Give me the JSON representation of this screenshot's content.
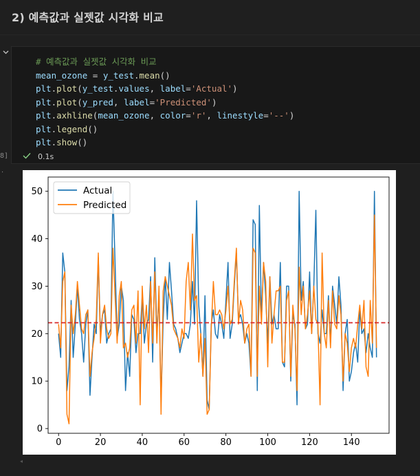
{
  "markdown": {
    "title": "2) 예측값과 실젯값 시각화 비교"
  },
  "cell": {
    "code_lines": [
      [
        [
          "# 예측값과 실젯값 시각화 비교",
          "t-com"
        ]
      ],
      [
        [
          "mean_ozone",
          "t-var"
        ],
        [
          " = ",
          "t-op"
        ],
        [
          "y_test",
          "t-var"
        ],
        [
          ".",
          "t-op"
        ],
        [
          "mean",
          "t-fn"
        ],
        [
          "()",
          "t-op"
        ]
      ],
      [
        [
          "plt",
          "t-var"
        ],
        [
          ".",
          "t-op"
        ],
        [
          "plot",
          "t-fn"
        ],
        [
          "(",
          "t-op"
        ],
        [
          "y_test",
          "t-var"
        ],
        [
          ".",
          "t-op"
        ],
        [
          "values",
          "t-var"
        ],
        [
          ", ",
          "t-op"
        ],
        [
          "label",
          "t-var"
        ],
        [
          "=",
          "t-op"
        ],
        [
          "'Actual'",
          "t-str"
        ],
        [
          ")",
          "t-op"
        ]
      ],
      [
        [
          "plt",
          "t-var"
        ],
        [
          ".",
          "t-op"
        ],
        [
          "plot",
          "t-fn"
        ],
        [
          "(",
          "t-op"
        ],
        [
          "y_pred",
          "t-var"
        ],
        [
          ", ",
          "t-op"
        ],
        [
          "label",
          "t-var"
        ],
        [
          "=",
          "t-op"
        ],
        [
          "'Predicted'",
          "t-str"
        ],
        [
          ")",
          "t-op"
        ]
      ],
      [
        [
          "plt",
          "t-var"
        ],
        [
          ".",
          "t-op"
        ],
        [
          "axhline",
          "t-fn"
        ],
        [
          "(",
          "t-op"
        ],
        [
          "mean_ozone",
          "t-var"
        ],
        [
          ", ",
          "t-op"
        ],
        [
          "color",
          "t-var"
        ],
        [
          "=",
          "t-op"
        ],
        [
          "'r'",
          "t-str"
        ],
        [
          ", ",
          "t-op"
        ],
        [
          "linestyle",
          "t-var"
        ],
        [
          "=",
          "t-op"
        ],
        [
          "'--'",
          "t-str"
        ],
        [
          ")",
          "t-op"
        ]
      ],
      [
        [
          "plt",
          "t-var"
        ],
        [
          ".",
          "t-op"
        ],
        [
          "legend",
          "t-fn"
        ],
        [
          "()",
          "t-op"
        ]
      ],
      [
        [
          "plt",
          "t-var"
        ],
        [
          ".",
          "t-op"
        ],
        [
          "show",
          "t-fn"
        ],
        [
          "()",
          "t-op"
        ]
      ]
    ],
    "exec_count": "8]",
    "exec_time": "0.1s"
  },
  "icons": {
    "collapse": "chevron-down-icon",
    "success": "check-icon"
  },
  "chart_data": {
    "type": "line",
    "xlim": [
      -5,
      158
    ],
    "ylim": [
      -1,
      53
    ],
    "xticks": [
      0,
      20,
      40,
      60,
      80,
      100,
      120,
      140
    ],
    "yticks": [
      0,
      10,
      20,
      30,
      40,
      50
    ],
    "legend_position": "top-left",
    "hline": {
      "value": 22.3,
      "color": "#d62728",
      "style": "dashed"
    },
    "series": [
      {
        "name": "Actual",
        "color": "#1f77b4",
        "values": [
          20,
          15,
          37,
          33,
          8,
          13,
          27,
          15,
          22,
          30,
          23,
          20,
          14,
          22,
          25,
          7,
          15,
          22,
          20,
          36,
          20,
          24,
          25,
          18,
          20,
          21,
          50,
          35,
          19,
          22,
          30,
          27,
          8,
          16,
          11,
          24,
          23,
          16,
          20,
          20,
          28,
          18,
          22,
          23,
          32,
          14,
          36,
          20,
          28,
          6,
          23,
          32,
          23,
          35,
          29,
          22,
          21,
          19,
          16,
          18,
          20,
          20,
          19,
          22,
          31,
          22,
          48,
          26,
          20,
          11,
          28,
          6,
          4,
          22,
          25,
          20,
          19,
          24,
          22,
          19,
          27,
          35,
          19,
          22,
          30,
          37,
          23,
          24,
          22,
          18,
          20,
          18,
          11,
          44,
          43,
          8,
          47,
          23,
          35,
          28,
          18,
          32,
          22,
          24,
          21,
          21,
          35,
          14,
          13,
          30,
          30,
          10,
          24,
          22,
          5,
          50,
          27,
          31,
          21,
          22,
          33,
          20,
          30,
          46,
          20,
          18,
          25,
          20,
          20,
          28,
          18,
          30,
          26,
          22,
          32,
          26,
          8,
          20,
          23,
          10,
          12,
          16,
          18,
          14,
          25,
          20,
          21,
          16,
          20,
          17,
          15,
          50,
          15
        ]
      },
      {
        "name": "Predicted",
        "color": "#ff7f0e",
        "values": [
          22,
          17,
          31,
          33,
          3,
          1,
          26,
          20,
          24,
          31,
          26,
          21,
          20,
          24,
          25,
          11,
          16,
          19,
          23,
          37,
          18,
          24,
          26,
          21,
          19,
          20,
          38,
          28,
          18,
          28,
          31,
          17,
          18,
          15,
          17,
          25,
          26,
          18,
          29,
          5,
          30,
          21,
          26,
          16,
          31,
          18,
          33,
          18,
          30,
          3,
          29,
          32,
          30,
          28,
          26,
          21,
          20,
          19,
          17,
          21,
          19,
          31,
          35,
          25,
          41,
          27,
          28,
          14,
          20,
          11,
          19,
          3,
          4,
          21,
          31,
          24,
          24,
          25,
          24,
          21,
          25,
          30,
          22,
          23,
          31,
          38,
          22,
          27,
          25,
          18,
          21,
          22,
          11,
          38,
          37,
          11,
          30,
          22,
          35,
          31,
          13,
          32,
          18,
          24,
          29,
          29,
          30,
          14,
          14,
          27,
          29,
          11,
          26,
          21,
          8,
          34,
          24,
          30,
          21,
          24,
          29,
          20,
          30,
          23,
          22,
          5,
          37,
          20,
          17,
          27,
          17,
          29,
          22,
          21,
          28,
          24,
          10,
          20,
          18,
          12,
          17,
          19,
          17,
          22,
          26,
          21,
          27,
          13,
          11,
          27,
          18,
          45,
          17
        ]
      }
    ]
  }
}
